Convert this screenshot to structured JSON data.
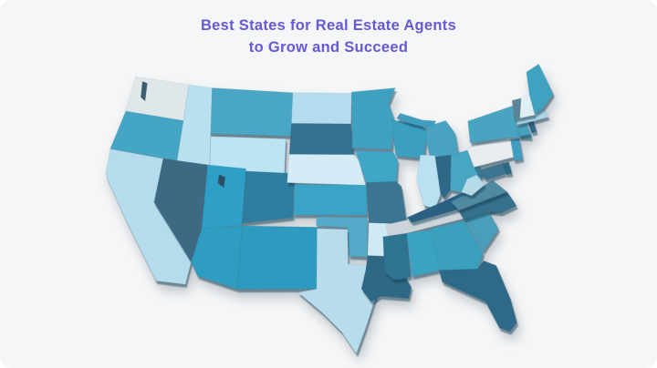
{
  "title": {
    "line1": "Best States for Real Estate Agents",
    "line2": "to Grow and Succeed",
    "color": "#6459d6"
  },
  "card": {
    "background": "#f5f6f7"
  },
  "map": {
    "description": "3D choropleth map of the contiguous United States shaded in blues and teals",
    "states": [
      {
        "id": "WA",
        "name": "Washington",
        "color": "#dfe7ea"
      },
      {
        "id": "OR",
        "name": "Oregon",
        "color": "#45a5c5"
      },
      {
        "id": "CA",
        "name": "California",
        "color": "#b4dcec"
      },
      {
        "id": "ID",
        "name": "Idaho",
        "color": "#b9e0ef"
      },
      {
        "id": "NV",
        "name": "Nevada",
        "color": "#3e6b82"
      },
      {
        "id": "MT",
        "name": "Montana",
        "color": "#4aa6c5"
      },
      {
        "id": "WY",
        "name": "Wyoming",
        "color": "#bce4f2"
      },
      {
        "id": "UT",
        "name": "Utah",
        "color": "#2f9fc6"
      },
      {
        "id": "CO",
        "name": "Colorado",
        "color": "#2e7d9e"
      },
      {
        "id": "AZ",
        "name": "Arizona",
        "color": "#2f9dc1"
      },
      {
        "id": "NM",
        "name": "New Mexico",
        "color": "#2d9abf"
      },
      {
        "id": "ND",
        "name": "North Dakota",
        "color": "#b3ddee"
      },
      {
        "id": "SD",
        "name": "South Dakota",
        "color": "#33718f"
      },
      {
        "id": "NE",
        "name": "Nebraska",
        "color": "#d3ecf6"
      },
      {
        "id": "KS",
        "name": "Kansas",
        "color": "#3ba3c6"
      },
      {
        "id": "OK",
        "name": "Oklahoma",
        "color": "#52abc9"
      },
      {
        "id": "TX",
        "name": "Texas",
        "color": "#b7dceb"
      },
      {
        "id": "MN",
        "name": "Minnesota",
        "color": "#3fa0bf"
      },
      {
        "id": "IA",
        "name": "Iowa",
        "color": "#3fa6c8"
      },
      {
        "id": "MO",
        "name": "Missouri",
        "color": "#3a7491"
      },
      {
        "id": "AR",
        "name": "Arkansas",
        "color": "#cfeaf3"
      },
      {
        "id": "LA",
        "name": "Louisiana",
        "color": "#2e6784"
      },
      {
        "id": "WI",
        "name": "Wisconsin",
        "color": "#3a9fc0"
      },
      {
        "id": "MIUP",
        "name": "Michigan Upper Peninsula",
        "color": "#3f9dbd"
      },
      {
        "id": "MI",
        "name": "Michigan",
        "color": "#46a3c0"
      },
      {
        "id": "IL",
        "name": "Illinois",
        "color": "#b9e1f1"
      },
      {
        "id": "IN",
        "name": "Indiana",
        "color": "#2e6886"
      },
      {
        "id": "OH",
        "name": "Ohio",
        "color": "#4aa6c3"
      },
      {
        "id": "TN",
        "name": "Tennessee",
        "color": "#ccd6da"
      },
      {
        "id": "KY",
        "name": "Kentucky",
        "color": "#2b6183"
      },
      {
        "id": "MS",
        "name": "Mississippi",
        "color": "#2e7390"
      },
      {
        "id": "AL",
        "name": "Alabama",
        "color": "#3ba2c2"
      },
      {
        "id": "GA",
        "name": "Georgia",
        "color": "#3aa0bd"
      },
      {
        "id": "SC",
        "name": "South Carolina",
        "color": "#4a9fba"
      },
      {
        "id": "NC",
        "name": "North Carolina",
        "color": "#356f8d"
      },
      {
        "id": "VA",
        "name": "Virginia",
        "color": "#4f89a2"
      },
      {
        "id": "WV",
        "name": "West Virginia",
        "color": "#b5dbe9"
      },
      {
        "id": "FL",
        "name": "Florida",
        "color": "#2e6a88"
      },
      {
        "id": "MD",
        "name": "Maryland",
        "color": "#3a7490"
      },
      {
        "id": "DE",
        "name": "Delaware",
        "color": "#2f6886"
      },
      {
        "id": "PA",
        "name": "Pennsylvania",
        "color": "#e9edef"
      },
      {
        "id": "NJ",
        "name": "New Jersey",
        "color": "#3f9fc0"
      },
      {
        "id": "NY",
        "name": "New York",
        "color": "#4aa4c2"
      },
      {
        "id": "CT",
        "name": "Connecticut",
        "color": "#4aa0bb"
      },
      {
        "id": "RI",
        "name": "Rhode Island",
        "color": "#2f6886"
      },
      {
        "id": "MA",
        "name": "Massachusetts",
        "color": "#aad5e7"
      },
      {
        "id": "VT",
        "name": "Vermont",
        "color": "#5b8296"
      },
      {
        "id": "NH",
        "name": "New Hampshire",
        "color": "#e0eff4"
      },
      {
        "id": "ME",
        "name": "Maine",
        "color": "#41a2c0"
      }
    ],
    "water_marks": [
      {
        "id": "PUGET",
        "name": "puget-sound",
        "color": "#3a5d70"
      },
      {
        "id": "SALTLAKE",
        "name": "great-salt-lake",
        "color": "#2b4f63"
      }
    ]
  }
}
